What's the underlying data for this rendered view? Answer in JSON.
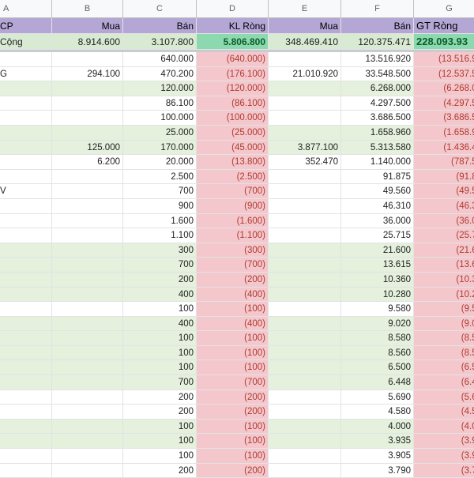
{
  "columns": {
    "a": "A",
    "b": "B",
    "c": "C",
    "d": "D",
    "e": "E",
    "f": "F",
    "g": "G"
  },
  "header_row": {
    "a": "CP",
    "b": "Mua",
    "c": "Bán",
    "d": "KL Ròng",
    "e": "Mua",
    "f": "Bán",
    "g": "GT Ròng"
  },
  "total_row": {
    "a": "Cộng",
    "b": "8.914.600",
    "c": "3.107.800",
    "d": "5.806.800",
    "e": "348.469.410",
    "f": "120.375.471",
    "g": "228.093.93"
  },
  "rows": [
    {
      "a": "",
      "b": "",
      "c": "640.000",
      "d": "(640.000)",
      "e": "",
      "f": "13.516.920",
      "g": "(13.516.92",
      "green": false
    },
    {
      "a": "G",
      "b": "294.100",
      "c": "470.200",
      "d": "(176.100)",
      "e": "21.010.920",
      "f": "33.548.500",
      "g": "(12.537.58",
      "green": false
    },
    {
      "a": "",
      "b": "",
      "c": "120.000",
      "d": "(120.000)",
      "e": "",
      "f": "6.268.000",
      "g": "(6.268.00",
      "green": true
    },
    {
      "a": "",
      "b": "",
      "c": "86.100",
      "d": "(86.100)",
      "e": "",
      "f": "4.297.500",
      "g": "(4.297.50",
      "green": false
    },
    {
      "a": "",
      "b": "",
      "c": "100.000",
      "d": "(100.000)",
      "e": "",
      "f": "3.686.500",
      "g": "(3.686.50",
      "green": false
    },
    {
      "a": "",
      "b": "",
      "c": "25.000",
      "d": "(25.000)",
      "e": "",
      "f": "1.658.960",
      "g": "(1.658.96",
      "green": true
    },
    {
      "a": "",
      "b": "125.000",
      "c": "170.000",
      "d": "(45.000)",
      "e": "3.877.100",
      "f": "5.313.580",
      "g": "(1.436.48",
      "green": true
    },
    {
      "a": "",
      "b": "6.200",
      "c": "20.000",
      "d": "(13.800)",
      "e": "352.470",
      "f": "1.140.000",
      "g": "(787.53",
      "green": false
    },
    {
      "a": "",
      "b": "",
      "c": "2.500",
      "d": "(2.500)",
      "e": "",
      "f": "91.875",
      "g": "(91.87",
      "green": false
    },
    {
      "a": "V",
      "b": "",
      "c": "700",
      "d": "(700)",
      "e": "",
      "f": "49.560",
      "g": "(49.56",
      "green": false
    },
    {
      "a": "",
      "b": "",
      "c": "900",
      "d": "(900)",
      "e": "",
      "f": "46.310",
      "g": "(46.31",
      "green": false
    },
    {
      "a": "",
      "b": "",
      "c": "1.600",
      "d": "(1.600)",
      "e": "",
      "f": "36.000",
      "g": "(36.00",
      "green": false
    },
    {
      "a": "",
      "b": "",
      "c": "1.100",
      "d": "(1.100)",
      "e": "",
      "f": "25.715",
      "g": "(25.71",
      "green": false
    },
    {
      "a": "",
      "b": "",
      "c": "300",
      "d": "(300)",
      "e": "",
      "f": "21.600",
      "g": "(21.60",
      "green": true
    },
    {
      "a": "",
      "b": "",
      "c": "700",
      "d": "(700)",
      "e": "",
      "f": "13.615",
      "g": "(13.61",
      "green": true
    },
    {
      "a": "",
      "b": "",
      "c": "200",
      "d": "(200)",
      "e": "",
      "f": "10.360",
      "g": "(10.36",
      "green": true
    },
    {
      "a": "",
      "b": "",
      "c": "400",
      "d": "(400)",
      "e": "",
      "f": "10.280",
      "g": "(10.28",
      "green": true
    },
    {
      "a": "",
      "b": "",
      "c": "100",
      "d": "(100)",
      "e": "",
      "f": "9.580",
      "g": "(9.58",
      "green": false
    },
    {
      "a": "",
      "b": "",
      "c": "400",
      "d": "(400)",
      "e": "",
      "f": "9.020",
      "g": "(9.02",
      "green": true
    },
    {
      "a": "",
      "b": "",
      "c": "100",
      "d": "(100)",
      "e": "",
      "f": "8.580",
      "g": "(8.58",
      "green": true
    },
    {
      "a": "",
      "b": "",
      "c": "100",
      "d": "(100)",
      "e": "",
      "f": "8.560",
      "g": "(8.56",
      "green": true
    },
    {
      "a": "",
      "b": "",
      "c": "100",
      "d": "(100)",
      "e": "",
      "f": "6.500",
      "g": "(6.50",
      "green": true
    },
    {
      "a": "",
      "b": "",
      "c": "700",
      "d": "(700)",
      "e": "",
      "f": "6.448",
      "g": "(6.44",
      "green": true
    },
    {
      "a": "",
      "b": "",
      "c": "200",
      "d": "(200)",
      "e": "",
      "f": "5.690",
      "g": "(5.69",
      "green": false
    },
    {
      "a": "",
      "b": "",
      "c": "200",
      "d": "(200)",
      "e": "",
      "f": "4.580",
      "g": "(4.58",
      "green": false
    },
    {
      "a": "",
      "b": "",
      "c": "100",
      "d": "(100)",
      "e": "",
      "f": "4.000",
      "g": "(4.00",
      "green": true
    },
    {
      "a": "",
      "b": "",
      "c": "100",
      "d": "(100)",
      "e": "",
      "f": "3.935",
      "g": "(3.93",
      "green": true
    },
    {
      "a": "",
      "b": "",
      "c": "100",
      "d": "(100)",
      "e": "",
      "f": "3.905",
      "g": "(3.90",
      "green": false
    },
    {
      "a": "",
      "b": "",
      "c": "200",
      "d": "(200)",
      "e": "",
      "f": "3.790",
      "g": "(3.79",
      "green": false
    }
  ],
  "colors": {
    "header_purple": "#b4a7d6",
    "total_green": "#d9ead3",
    "highlight_green": "#8cd9b0",
    "neg_pink": "#f4c7cd",
    "row_green": "#e5f0dd",
    "neg_text": "#b03a2e"
  }
}
